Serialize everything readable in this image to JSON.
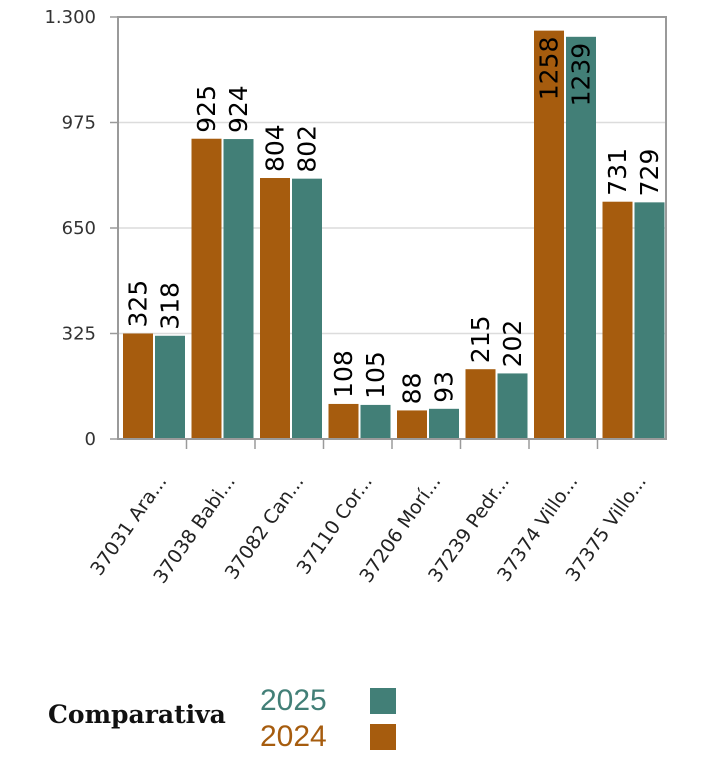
{
  "chart_data": {
    "type": "bar",
    "categories": [
      "37031 Ara...",
      "37038 Babi...",
      "37082 Can...",
      "37110 Cor...",
      "37206 Morí...",
      "37239 Pedr...",
      "37374 Villo...",
      "37375 Villo..."
    ],
    "series": [
      {
        "name": "2024",
        "color": "#a65c0e",
        "values": [
          325,
          925,
          804,
          108,
          88,
          215,
          1258,
          731
        ]
      },
      {
        "name": "2025",
        "color": "#427f77",
        "values": [
          318,
          924,
          802,
          105,
          93,
          202,
          1239,
          729
        ]
      }
    ],
    "ylim": [
      0,
      1300
    ],
    "yticks": [
      0,
      325,
      650,
      975,
      1300
    ],
    "ytick_labels": [
      "0",
      "325",
      "650",
      "975",
      "1.300"
    ],
    "grid": true,
    "data_labels": true,
    "legend": {
      "title": "Comparativa",
      "position": "bottom-left",
      "items": [
        {
          "label": "2025",
          "color": "#427f77"
        },
        {
          "label": "2024",
          "color": "#a65c0e"
        }
      ]
    }
  }
}
